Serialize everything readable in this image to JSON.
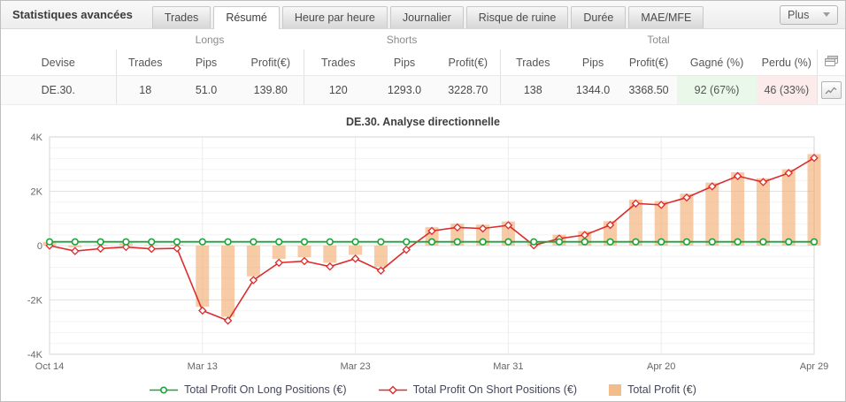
{
  "window": {
    "title": "Statistiques avancées"
  },
  "tabs": {
    "items": [
      {
        "label": "Trades",
        "active": false
      },
      {
        "label": "Résumé",
        "active": true
      },
      {
        "label": "Heure par heure",
        "active": false
      },
      {
        "label": "Journalier",
        "active": false
      },
      {
        "label": "Risque de ruine",
        "active": false
      },
      {
        "label": "Durée",
        "active": false
      },
      {
        "label": "MAE/MFE",
        "active": false
      }
    ],
    "more_button": {
      "label": "Plus"
    }
  },
  "table": {
    "groups": [
      "Longs",
      "Shorts",
      "Total"
    ],
    "columns": [
      "Devise",
      "Trades",
      "Pips",
      "Profit(€)",
      "Trades",
      "Pips",
      "Profit(€)",
      "Trades",
      "Pips",
      "Profit(€)",
      "Gagné (%)",
      "Perdu (%)"
    ],
    "rows": [
      {
        "cells": [
          "DE.30.",
          "18",
          "51.0",
          "139.80",
          "120",
          "1293.0",
          "3228.70",
          "138",
          "1344.0",
          "3368.50",
          "92 (67%)",
          "46 (33%)"
        ]
      }
    ]
  },
  "icons": {
    "more": "chevron-down-icon",
    "header_action": "copy-windows-icon",
    "row_action": "line-chart-icon"
  },
  "colors": {
    "positive_text": "#2f9e68",
    "win_cell_bg": "#e9f8e9",
    "loss_cell_bg": "#fcebeb",
    "long_line": "#1fa23c",
    "short_line": "#dd2c2c",
    "total_bar": "#f0ab6e"
  },
  "chart_data": {
    "type": "combo",
    "title": "DE.30. Analyse directionnelle",
    "ylim": [
      -4000,
      4000
    ],
    "major_step": 2000,
    "minor_step": 400,
    "grid": true,
    "legend_position": "bottom",
    "n_points": 31,
    "y_ticks": [
      {
        "value": 4000,
        "label": "4K"
      },
      {
        "value": 2000,
        "label": "2K"
      },
      {
        "value": 0,
        "label": "0"
      },
      {
        "value": -2000,
        "label": "-2K"
      },
      {
        "value": -4000,
        "label": "-4K"
      }
    ],
    "x_tick_indices": [
      0,
      6,
      12,
      18,
      24,
      30
    ],
    "x_tick_labels": [
      "Oct 14",
      "Mar 13",
      "Mar 23",
      "Mar 31",
      "Apr 20",
      "Apr 29"
    ],
    "series": [
      {
        "name": "Total Profit On Long Positions (€)",
        "type": "line",
        "marker": "circle",
        "color": "#1fa23c",
        "values": [
          139.8,
          139.8,
          139.8,
          139.8,
          139.8,
          139.8,
          139.8,
          139.8,
          139.8,
          139.8,
          139.8,
          139.8,
          139.8,
          139.8,
          139.8,
          139.8,
          139.8,
          139.8,
          139.8,
          139.8,
          139.8,
          139.8,
          139.8,
          139.8,
          139.8,
          139.8,
          139.8,
          139.8,
          139.8,
          139.8,
          139.8
        ]
      },
      {
        "name": "Total Profit On Short Positions (€)",
        "type": "line",
        "marker": "diamond",
        "color": "#dd2c2c",
        "values": [
          0,
          -200,
          -110,
          -50,
          -120,
          -100,
          -2390,
          -2760,
          -1270,
          -630,
          -570,
          -770,
          -480,
          -920,
          -150,
          540,
          670,
          630,
          750,
          10,
          260,
          390,
          760,
          1550,
          1500,
          1770,
          2180,
          2560,
          2340,
          2670,
          3228.7
        ]
      },
      {
        "name": "Total Profit (€)",
        "type": "bar",
        "color": "#f0ab6e",
        "values": [
          139.8,
          -60.2,
          29.8,
          89.8,
          19.8,
          39.8,
          -2250.2,
          -2620.2,
          -1130.2,
          -490.2,
          -430.2,
          -630.2,
          -340.2,
          -780.2,
          -10.2,
          679.8,
          809.8,
          769.8,
          889.8,
          149.8,
          399.8,
          529.8,
          899.8,
          1689.8,
          1639.8,
          1909.8,
          2319.8,
          2699.8,
          2479.8,
          2809.8,
          3368.5
        ]
      }
    ]
  }
}
